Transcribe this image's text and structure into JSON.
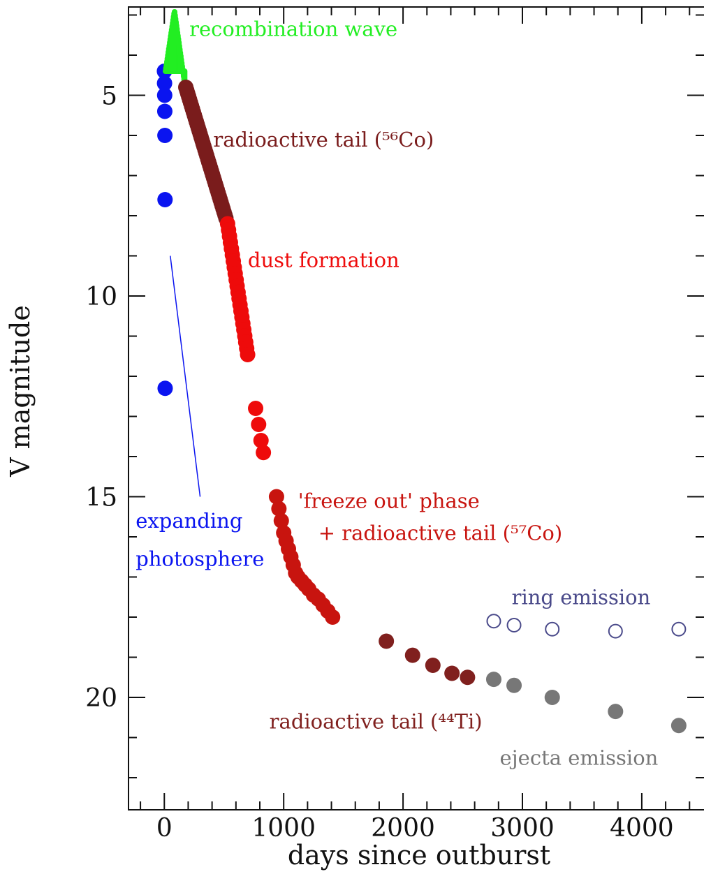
{
  "colors": {
    "blue": "#0a14f0",
    "green": "#22ee22",
    "darkred": "#7a1c1c",
    "red": "#ee0b0b",
    "crimson": "#c8140f",
    "brown": "#80201e",
    "gray": "#777777",
    "ring": "#4a4a8a",
    "axis": "#111111"
  },
  "chart_data": {
    "type": "scatter",
    "xlabel": "days since outburst",
    "ylabel": "V magnitude",
    "xlim": [
      -300,
      4650
    ],
    "ylim": [
      22.8,
      2.8
    ],
    "y_inverted": true,
    "grid": false,
    "xticks": [
      0,
      1000,
      2000,
      3000,
      4000
    ],
    "xtick_labels": [
      "0",
      "1000",
      "2000",
      "3000",
      "4000"
    ],
    "yticks": [
      5,
      10,
      15,
      20
    ],
    "ytick_labels": [
      "5",
      "10",
      "15",
      "20"
    ],
    "series": [
      {
        "name": "expanding photosphere",
        "color": "blue",
        "points": [
          [
            1,
            4.4
          ],
          [
            2,
            4.7
          ],
          [
            3,
            5.0
          ],
          [
            4,
            5.4
          ],
          [
            5,
            6.0
          ],
          [
            6,
            7.6
          ],
          [
            7,
            12.3
          ]
        ]
      },
      {
        "name": "recombination wave",
        "color": "green",
        "band": {
          "start": 10,
          "end": 170,
          "peak_day": 85,
          "peak_mag": 2.9,
          "start_mag": 4.4,
          "end_mag": 4.7
        }
      },
      {
        "name": "radioactive tail (56Co)",
        "color": "darkred",
        "segment": {
          "x": [
            180,
            520
          ],
          "y": [
            4.8,
            8.1
          ],
          "step": 8
        }
      },
      {
        "name": "dust formation",
        "color": "red",
        "segment": {
          "x": [
            530,
            700
          ],
          "y": [
            8.2,
            11.5
          ],
          "step": 8
        },
        "points": [
          [
            765,
            12.8
          ],
          [
            790,
            13.2
          ],
          [
            810,
            13.6
          ],
          [
            830,
            13.9
          ]
        ]
      },
      {
        "name": "'freeze out' phase + radioactive tail (57Co)",
        "color": "crimson",
        "points": [
          [
            940,
            15.0
          ],
          [
            960,
            15.3
          ],
          [
            980,
            15.6
          ],
          [
            1000,
            15.9
          ],
          [
            1020,
            16.1
          ],
          [
            1040,
            16.3
          ],
          [
            1060,
            16.5
          ],
          [
            1080,
            16.7
          ],
          [
            1100,
            16.9
          ],
          [
            1120,
            17.0
          ],
          [
            1150,
            17.1
          ],
          [
            1180,
            17.2
          ],
          [
            1210,
            17.3
          ],
          [
            1250,
            17.45
          ],
          [
            1290,
            17.55
          ],
          [
            1330,
            17.7
          ],
          [
            1370,
            17.85
          ],
          [
            1410,
            18.0
          ]
        ]
      },
      {
        "name": "radioactive tail (44Ti)",
        "color": "brown",
        "points": [
          [
            1860,
            18.6
          ],
          [
            2080,
            18.95
          ],
          [
            2250,
            19.2
          ],
          [
            2410,
            19.4
          ],
          [
            2540,
            19.5
          ]
        ]
      },
      {
        "name": "ejecta emission",
        "color": "gray",
        "points": [
          [
            2760,
            19.55
          ],
          [
            2930,
            19.7
          ],
          [
            3250,
            20.0
          ],
          [
            3780,
            20.35
          ],
          [
            4310,
            20.7
          ]
        ]
      },
      {
        "name": "ring emission",
        "color": "ring",
        "open": true,
        "points": [
          [
            2760,
            18.1
          ],
          [
            2930,
            18.2
          ],
          [
            3250,
            18.3
          ],
          [
            3780,
            18.35
          ],
          [
            4310,
            18.3
          ]
        ]
      }
    ],
    "photosphere_line": {
      "from": [
        50,
        9.0
      ],
      "to": [
        300,
        15.0
      ],
      "color": "blue"
    },
    "annotations": [
      {
        "text": "recombination wave",
        "x": 210,
        "y": 3.35,
        "color": "green"
      },
      {
        "text": "radioactive tail (⁵⁶Co)",
        "x": 410,
        "y": 6.1,
        "color": "darkred"
      },
      {
        "text": "dust formation",
        "x": 700,
        "y": 9.1,
        "color": "red"
      },
      {
        "text": "'freeze out' phase",
        "x": 1120,
        "y": 15.1,
        "color": "crimson"
      },
      {
        "text": "+ radioactive tail (⁵⁷Co)",
        "x": 1290,
        "y": 15.9,
        "color": "crimson"
      },
      {
        "text": "expanding",
        "x": -240,
        "y": 15.6,
        "color": "blue"
      },
      {
        "text": "photosphere",
        "x": -240,
        "y": 16.55,
        "color": "blue"
      },
      {
        "text": "ring emission",
        "x": 2910,
        "y": 17.5,
        "color": "ring"
      },
      {
        "text": "radioactive tail (⁴⁴Ti)",
        "x": 880,
        "y": 20.6,
        "color": "brown"
      },
      {
        "text": "ejecta emission",
        "x": 2810,
        "y": 21.5,
        "color": "gray"
      }
    ]
  }
}
